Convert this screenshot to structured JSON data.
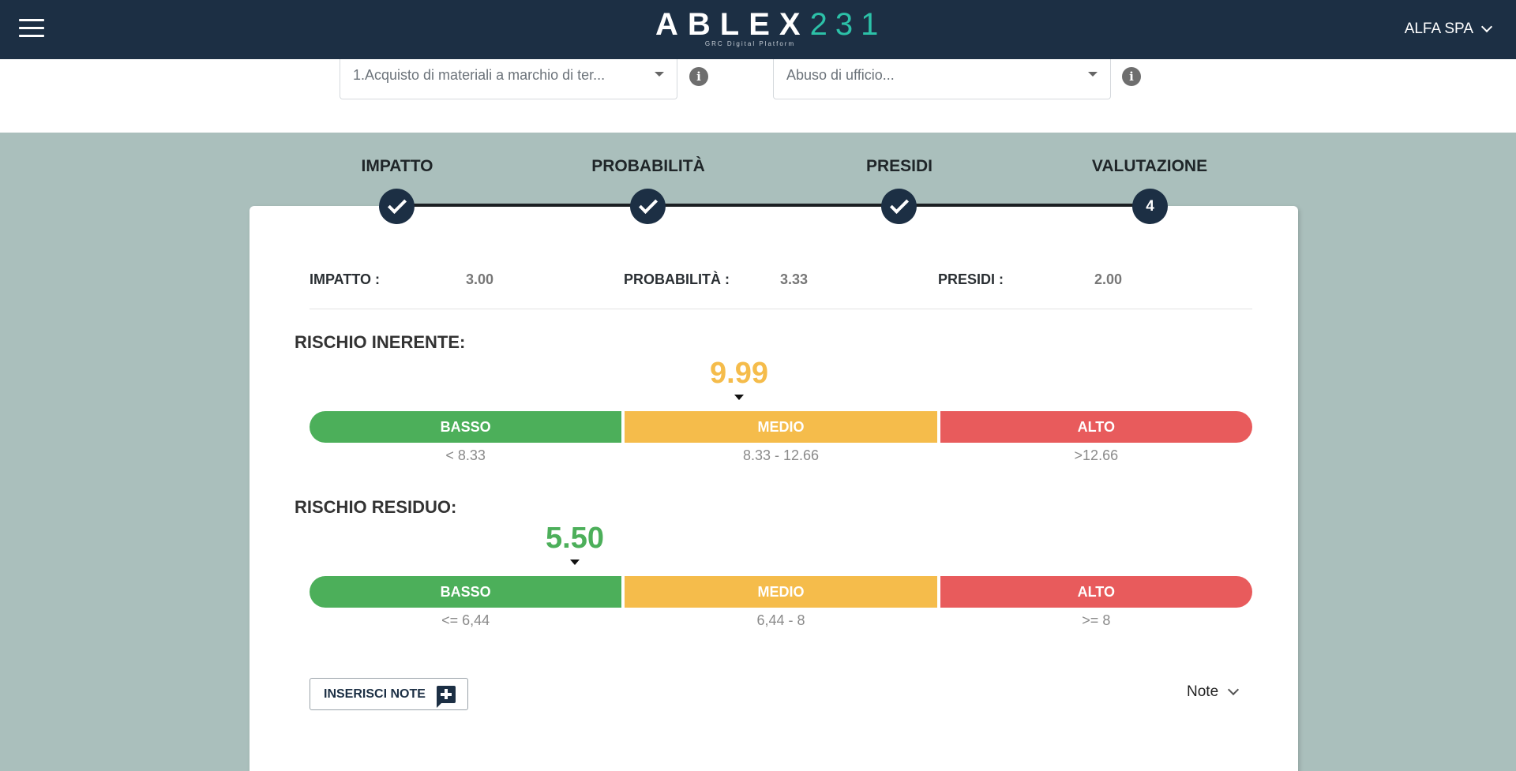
{
  "header": {
    "logo_text": "ABLEX",
    "logo_number": "231",
    "logo_tagline": "GRC Digital Platform",
    "company": "ALFA SPA"
  },
  "filters": {
    "process_select": "1.Acquisto di materiali a marchio di ter...",
    "offense_select": "Abuso di ufficio..."
  },
  "stepper": {
    "steps": [
      {
        "label": "IMPATTO",
        "state": "done"
      },
      {
        "label": "PROBABILITÀ",
        "state": "done"
      },
      {
        "label": "PRESIDI",
        "state": "done"
      },
      {
        "label": "VALUTAZIONE",
        "state": "active",
        "number": "4"
      }
    ]
  },
  "summary": {
    "impatto_label": "IMPATTO :",
    "impatto_value": "3.00",
    "probabilita_label": "PROBABILITÀ :",
    "probabilita_value": "3.33",
    "presidi_label": "PRESIDI :",
    "presidi_value": "2.00"
  },
  "rischio_inerente": {
    "title": "RISCHIO INERENTE:",
    "score": "9.99",
    "score_color": "#f5bc4b",
    "segments": [
      {
        "label": "BASSO",
        "range": "< 8.33"
      },
      {
        "label": "MEDIO",
        "range": "8.33 - 12.66"
      },
      {
        "label": "ALTO",
        "range": ">12.66"
      }
    ]
  },
  "rischio_residuo": {
    "title": "RISCHIO RESIDUO:",
    "score": "5.50",
    "score_color": "#4caf5a",
    "segments": [
      {
        "label": "BASSO",
        "range": "<= 6,44"
      },
      {
        "label": "MEDIO",
        "range": "6,44 - 8"
      },
      {
        "label": "ALTO",
        "range": ">= 8"
      }
    ]
  },
  "actions": {
    "insert_notes": "INSERISCI NOTE",
    "notes_toggle": "Note"
  },
  "colors": {
    "header_bg": "#1c2f44",
    "page_bg": "#aabfbc",
    "low": "#4caf5a",
    "medium": "#f5bc4b",
    "high": "#e85b5c"
  }
}
